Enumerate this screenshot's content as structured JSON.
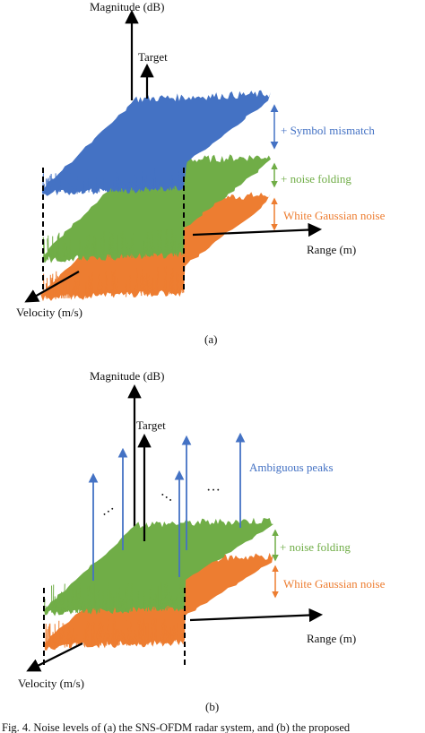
{
  "colors": {
    "blue": "#4472c4",
    "green": "#70ad47",
    "orange": "#ed7d31",
    "axis": "#000000"
  },
  "panel_a": {
    "y_axis": "Magnitude (dB)",
    "x_axis": "Range (m)",
    "z_axis": "Velocity (m/s)",
    "target": "Target",
    "symbol_mismatch": "+ Symbol mismatch",
    "noise_folding": "+ noise folding",
    "white_noise": "White Gaussian noise",
    "sublabel": "(a)"
  },
  "panel_b": {
    "y_axis": "Magnitude (dB)",
    "x_axis": "Range (m)",
    "z_axis": "Velocity (m/s)",
    "target": "Target",
    "ambiguous": "Ambiguous peaks",
    "noise_folding": "+ noise folding",
    "white_noise": "White Gaussian noise",
    "sublabel": "(b)"
  },
  "caption": "Fig. 4.  Noise levels of (a) the SNS-OFDM radar system, and (b) the proposed"
}
